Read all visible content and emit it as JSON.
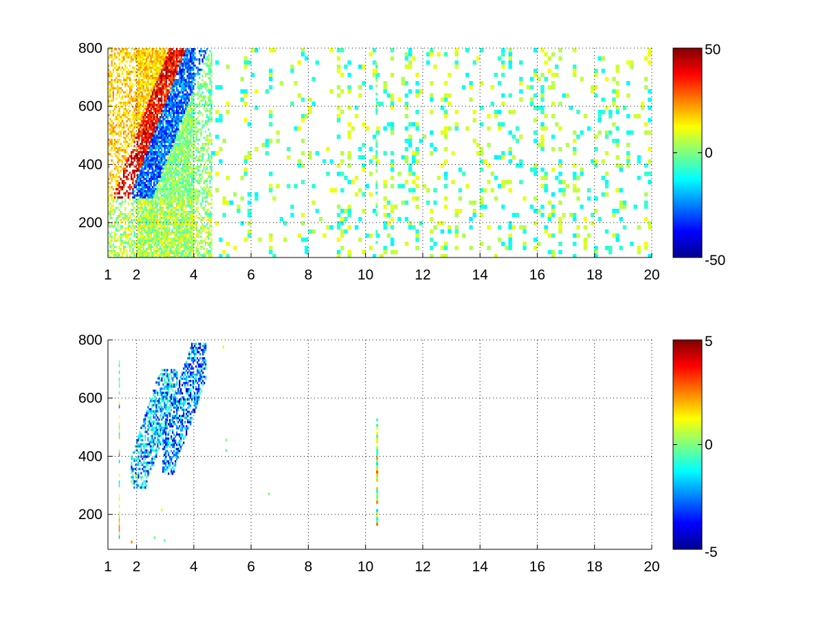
{
  "chart_data": [
    {
      "type": "heatmap",
      "title": "",
      "xlabel": "",
      "ylabel": "",
      "xlim": [
        1,
        20
      ],
      "ylim": [
        80,
        800
      ],
      "xticks": [
        1,
        2,
        4,
        6,
        8,
        10,
        12,
        14,
        16,
        18,
        20
      ],
      "xtick_labels": [
        "1",
        "2",
        "4",
        "6",
        "8",
        "10",
        "12",
        "14",
        "16",
        "18",
        "20"
      ],
      "yticks": [
        200,
        400,
        600,
        800
      ],
      "ytick_labels": [
        "200",
        "400",
        "600",
        "800"
      ],
      "grid": true,
      "colormap": "jet",
      "clim": [
        -50,
        50
      ],
      "colorbar_ticks": [
        50,
        0,
        -50
      ],
      "colorbar_labels": [
        "50",
        "0",
        "-50"
      ],
      "features": [
        {
          "x": [
            2.0,
            3.0
          ],
          "y": [
            300,
            600
          ],
          "value": 40,
          "desc": "warm band"
        },
        {
          "x": [
            3.0,
            4.0
          ],
          "y": [
            330,
            750
          ],
          "value": -30,
          "desc": "cool band"
        },
        {
          "x": [
            4.0,
            20.0
          ],
          "y": [
            80,
            800
          ],
          "value": 0,
          "desc": "sparse noise"
        }
      ]
    },
    {
      "type": "heatmap",
      "title": "",
      "xlabel": "",
      "ylabel": "",
      "xlim": [
        1,
        20
      ],
      "ylim": [
        80,
        800
      ],
      "xticks": [
        1,
        2,
        4,
        6,
        8,
        10,
        12,
        14,
        16,
        18,
        20
      ],
      "xtick_labels": [
        "1",
        "2",
        "4",
        "6",
        "8",
        "10",
        "12",
        "14",
        "16",
        "18",
        "20"
      ],
      "yticks": [
        200,
        400,
        600,
        800
      ],
      "ytick_labels": [
        "200",
        "400",
        "600",
        "800"
      ],
      "grid": true,
      "colormap": "jet",
      "clim": [
        -5,
        5
      ],
      "colorbar_ticks": [
        5,
        0,
        -5
      ],
      "colorbar_labels": [
        "5",
        "0",
        "-5"
      ],
      "features": [
        {
          "x": [
            1.8,
            3.2
          ],
          "y": [
            300,
            700
          ],
          "value": -3,
          "desc": "left cluster"
        },
        {
          "x": [
            3.0,
            4.3
          ],
          "y": [
            350,
            790
          ],
          "value": -4,
          "desc": "right cluster"
        },
        {
          "x": [
            10.3,
            10.45
          ],
          "y": [
            160,
            530
          ],
          "value": 1,
          "desc": "vertical streak"
        }
      ]
    }
  ]
}
